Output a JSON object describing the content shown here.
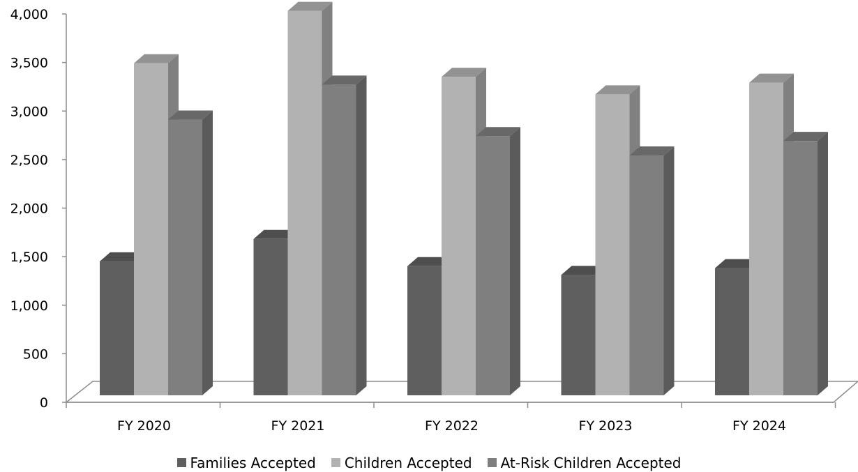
{
  "chart_data": {
    "type": "bar",
    "title": "",
    "xlabel": "",
    "ylabel": "",
    "ylim": [
      0,
      4000
    ],
    "yticks": [
      "0",
      "500",
      "1,000",
      "1,500",
      "2,000",
      "2,500",
      "3,000",
      "3,500",
      "4,000"
    ],
    "categories": [
      "FY 2020",
      "FY 2021",
      "FY 2022",
      "FY 2023",
      "FY 2024"
    ],
    "series": [
      {
        "name": "Families Accepted",
        "color": "#5f5f5f",
        "values": [
          1380,
          1610,
          1330,
          1240,
          1310
        ]
      },
      {
        "name": "Children Accepted",
        "color": "#b2b2b2",
        "values": [
          3420,
          3960,
          3280,
          3100,
          3220
        ]
      },
      {
        "name": "At-Risk Children Accepted",
        "color": "#7f7f7f",
        "values": [
          2840,
          3200,
          2670,
          2470,
          2620
        ]
      }
    ],
    "grid": false,
    "legend": "bottom",
    "style": "3d"
  }
}
